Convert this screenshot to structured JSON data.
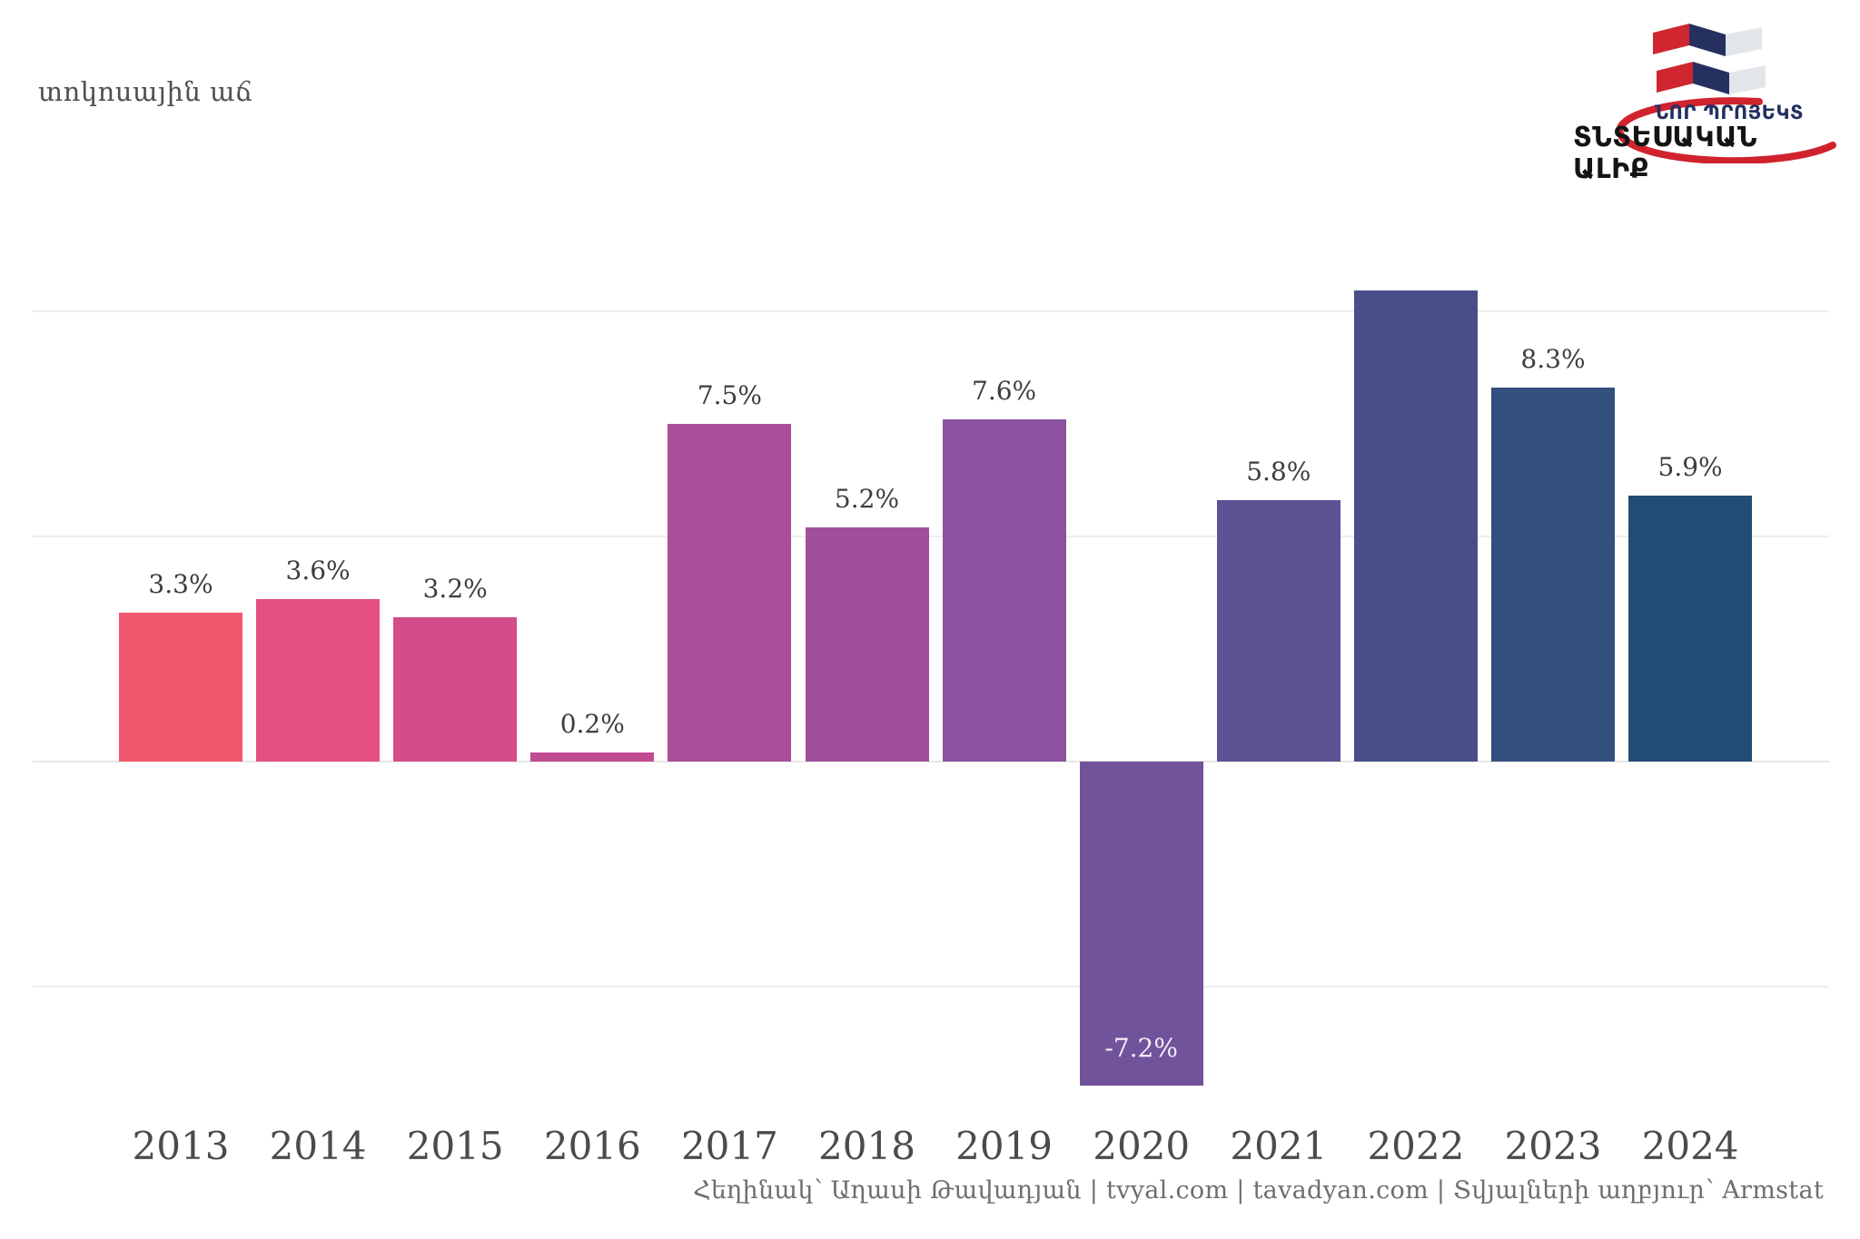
{
  "title_fragment": "տոկոսային աճ",
  "logo": {
    "line1": "ՆՈՐ ՊՐՈՅԵԿՏ",
    "line2": "ՏՆՏԵՍԱԿԱՆ ԱԼԻՔ",
    "flag_red": "#cf2630",
    "flag_navy": "#253061",
    "flag_gray": "#e2e6ea",
    "swoosh_red": "#d0232e"
  },
  "footer": {
    "author": "Հեղինակ՝ Աղասի Թավադյան",
    "site1": "tvyal.com",
    "site2": "tavadyan.com",
    "source": "Տվյալների աղբյուր՝ Armstat",
    "full": "Հեղինակ՝ Աղասի Թավադյան   |   tvyal.com   |   tavadyan.com   |   Տվյալների աղբյուր՝ Armstat"
  },
  "chart_data": {
    "type": "bar",
    "title": "տոկոսային աճ",
    "xlabel": "",
    "ylabel": "",
    "ylim": [
      -8,
      10.5
    ],
    "grid": "horizontal, light gray, at -5 / 0 / 5 / 10",
    "gridlines": [
      10,
      5,
      0,
      -5
    ],
    "legend": "none",
    "value_labels": "above positive bars, inside bottom of negative bar, 2022 bar clipped at panel top with no label",
    "categories": [
      "2013",
      "2014",
      "2015",
      "2016",
      "2017",
      "2018",
      "2019",
      "2020",
      "2021",
      "2022",
      "2023",
      "2024"
    ],
    "values": [
      3.3,
      3.6,
      3.2,
      0.2,
      7.5,
      5.2,
      7.6,
      -7.2,
      5.8,
      null,
      8.3,
      5.9
    ],
    "bars": [
      {
        "year": "2013",
        "value": 3.3,
        "label": "3.3%",
        "color": "#f2586d"
      },
      {
        "year": "2014",
        "value": 3.6,
        "label": "3.6%",
        "color": "#e65080"
      },
      {
        "year": "2015",
        "value": 3.2,
        "label": "3.2%",
        "color": "#d44d8a"
      },
      {
        "year": "2016",
        "value": 0.2,
        "label": "0.2%",
        "color": "#c04b90"
      },
      {
        "year": "2017",
        "value": 7.5,
        "label": "7.5%",
        "color": "#ab4d98"
      },
      {
        "year": "2018",
        "value": 5.2,
        "label": "5.2%",
        "color": "#a0509b"
      },
      {
        "year": "2019",
        "value": 7.6,
        "label": "7.6%",
        "color": "#8d52a0"
      },
      {
        "year": "2020",
        "value": -7.2,
        "label": "-7.2%",
        "color": "#71539b",
        "label_inside": true
      },
      {
        "year": "2021",
        "value": 5.8,
        "label": "5.8%",
        "color": "#5d5294"
      },
      {
        "year": "2022",
        "value": null,
        "visible_top_pct": 10.5,
        "label": "",
        "color": "#474e89",
        "clipped": true
      },
      {
        "year": "2023",
        "value": 8.3,
        "label": "8.3%",
        "color": "#33507e"
      },
      {
        "year": "2024",
        "value": 5.9,
        "label": "5.9%",
        "color": "#224c73"
      }
    ]
  }
}
